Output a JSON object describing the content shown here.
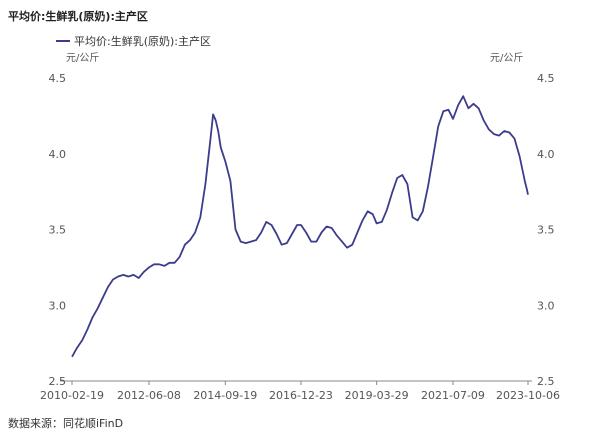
{
  "title": "平均价:生鲜乳(原奶):主产区",
  "source": "数据来源：同花顺iFinD",
  "chart_data": {
    "type": "line",
    "legend": {
      "placement": "top-left"
    },
    "grid": false,
    "x_ticks": [
      "2010-02-19",
      "2012-06-08",
      "2014-09-19",
      "2016-12-23",
      "2019-03-29",
      "2021-07-09",
      "2023-10-06"
    ],
    "x_range": [
      "2010-02-19",
      "2023-10-06"
    ],
    "y_left": {
      "unit": "元/公斤",
      "ticks": [
        "2.5",
        "3.0",
        "3.5",
        "4.0",
        "4.5"
      ],
      "range": [
        2.5,
        4.5
      ]
    },
    "y_right": {
      "unit": "元/公斤",
      "ticks": [
        "2.5",
        "3.0",
        "3.5",
        "4.0",
        "4.5"
      ],
      "range": [
        2.5,
        4.5
      ]
    },
    "series": [
      {
        "name": "平均价:生鲜乳(原奶):主产区",
        "color": "#3c3c8c",
        "points": [
          [
            "2010-02-19",
            2.66
          ],
          [
            "2010-04-16",
            2.72
          ],
          [
            "2010-06-11",
            2.77
          ],
          [
            "2010-08-06",
            2.84
          ],
          [
            "2010-10-01",
            2.92
          ],
          [
            "2010-11-26",
            2.98
          ],
          [
            "2011-01-21",
            3.05
          ],
          [
            "2011-03-18",
            3.12
          ],
          [
            "2011-05-13",
            3.17
          ],
          [
            "2011-07-08",
            3.19
          ],
          [
            "2011-09-02",
            3.2
          ],
          [
            "2011-10-28",
            3.19
          ],
          [
            "2011-12-23",
            3.2
          ],
          [
            "2012-02-17",
            3.18
          ],
          [
            "2012-04-13",
            3.22
          ],
          [
            "2012-06-08",
            3.25
          ],
          [
            "2012-08-03",
            3.27
          ],
          [
            "2012-09-28",
            3.27
          ],
          [
            "2012-11-23",
            3.26
          ],
          [
            "2013-01-18",
            3.28
          ],
          [
            "2013-03-15",
            3.28
          ],
          [
            "2013-05-10",
            3.32
          ],
          [
            "2013-07-05",
            3.4
          ],
          [
            "2013-08-30",
            3.43
          ],
          [
            "2013-10-25",
            3.48
          ],
          [
            "2013-12-20",
            3.58
          ],
          [
            "2014-02-14",
            3.8
          ],
          [
            "2014-04-11",
            4.1
          ],
          [
            "2014-05-09",
            4.26
          ],
          [
            "2014-06-06",
            4.22
          ],
          [
            "2014-07-04",
            4.15
          ],
          [
            "2014-08-01",
            4.04
          ],
          [
            "2014-09-19",
            3.95
          ],
          [
            "2014-11-14",
            3.82
          ],
          [
            "2015-01-09",
            3.5
          ],
          [
            "2015-03-06",
            3.42
          ],
          [
            "2015-05-01",
            3.41
          ],
          [
            "2015-06-26",
            3.42
          ],
          [
            "2015-08-21",
            3.43
          ],
          [
            "2015-10-16",
            3.48
          ],
          [
            "2015-12-11",
            3.55
          ],
          [
            "2016-02-05",
            3.53
          ],
          [
            "2016-04-01",
            3.47
          ],
          [
            "2016-05-27",
            3.4
          ],
          [
            "2016-07-22",
            3.41
          ],
          [
            "2016-09-16",
            3.47
          ],
          [
            "2016-11-11",
            3.53
          ],
          [
            "2016-12-23",
            3.53
          ],
          [
            "2017-02-17",
            3.48
          ],
          [
            "2017-04-14",
            3.42
          ],
          [
            "2017-06-09",
            3.42
          ],
          [
            "2017-08-04",
            3.48
          ],
          [
            "2017-09-29",
            3.52
          ],
          [
            "2017-11-24",
            3.51
          ],
          [
            "2018-01-19",
            3.46
          ],
          [
            "2018-03-16",
            3.42
          ],
          [
            "2018-05-11",
            3.38
          ],
          [
            "2018-07-06",
            3.4
          ],
          [
            "2018-08-31",
            3.48
          ],
          [
            "2018-10-26",
            3.56
          ],
          [
            "2018-12-21",
            3.62
          ],
          [
            "2019-02-15",
            3.6
          ],
          [
            "2019-03-29",
            3.54
          ],
          [
            "2019-05-24",
            3.55
          ],
          [
            "2019-07-19",
            3.63
          ],
          [
            "2019-09-13",
            3.74
          ],
          [
            "2019-11-08",
            3.84
          ],
          [
            "2020-01-03",
            3.86
          ],
          [
            "2020-02-28",
            3.8
          ],
          [
            "2020-04-24",
            3.58
          ],
          [
            "2020-06-19",
            3.56
          ],
          [
            "2020-08-14",
            3.62
          ],
          [
            "2020-10-09",
            3.78
          ],
          [
            "2020-12-04",
            3.98
          ],
          [
            "2021-01-29",
            4.18
          ],
          [
            "2021-03-26",
            4.28
          ],
          [
            "2021-05-21",
            4.29
          ],
          [
            "2021-07-09",
            4.23
          ],
          [
            "2021-09-03",
            4.32
          ],
          [
            "2021-10-29",
            4.38
          ],
          [
            "2021-12-24",
            4.3
          ],
          [
            "2022-02-18",
            4.33
          ],
          [
            "2022-04-15",
            4.3
          ],
          [
            "2022-06-10",
            4.22
          ],
          [
            "2022-08-05",
            4.16
          ],
          [
            "2022-09-30",
            4.13
          ],
          [
            "2022-11-25",
            4.12
          ],
          [
            "2023-01-20",
            4.15
          ],
          [
            "2023-03-17",
            4.14
          ],
          [
            "2023-05-12",
            4.1
          ],
          [
            "2023-07-07",
            3.98
          ],
          [
            "2023-09-01",
            3.82
          ],
          [
            "2023-09-22",
            3.77
          ],
          [
            "2023-10-06",
            3.73
          ]
        ]
      }
    ]
  }
}
